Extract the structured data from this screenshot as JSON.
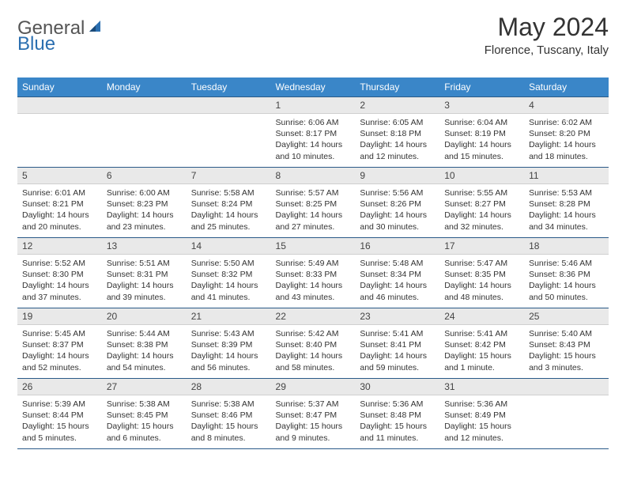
{
  "logo": {
    "part1": "General",
    "part2": "Blue"
  },
  "title": "May 2024",
  "location": "Florence, Tuscany, Italy",
  "colors": {
    "header_bg": "#3a86c8",
    "header_text": "#ffffff",
    "daynum_bg": "#e9e9e9",
    "border": "#2a5a88",
    "logo_accent": "#2b6fb0"
  },
  "weekdays": [
    "Sunday",
    "Monday",
    "Tuesday",
    "Wednesday",
    "Thursday",
    "Friday",
    "Saturday"
  ],
  "weeks": [
    [
      null,
      null,
      null,
      {
        "d": "1",
        "sr": "6:06 AM",
        "ss": "8:17 PM",
        "dl": "14 hours and 10 minutes."
      },
      {
        "d": "2",
        "sr": "6:05 AM",
        "ss": "8:18 PM",
        "dl": "14 hours and 12 minutes."
      },
      {
        "d": "3",
        "sr": "6:04 AM",
        "ss": "8:19 PM",
        "dl": "14 hours and 15 minutes."
      },
      {
        "d": "4",
        "sr": "6:02 AM",
        "ss": "8:20 PM",
        "dl": "14 hours and 18 minutes."
      }
    ],
    [
      {
        "d": "5",
        "sr": "6:01 AM",
        "ss": "8:21 PM",
        "dl": "14 hours and 20 minutes."
      },
      {
        "d": "6",
        "sr": "6:00 AM",
        "ss": "8:23 PM",
        "dl": "14 hours and 23 minutes."
      },
      {
        "d": "7",
        "sr": "5:58 AM",
        "ss": "8:24 PM",
        "dl": "14 hours and 25 minutes."
      },
      {
        "d": "8",
        "sr": "5:57 AM",
        "ss": "8:25 PM",
        "dl": "14 hours and 27 minutes."
      },
      {
        "d": "9",
        "sr": "5:56 AM",
        "ss": "8:26 PM",
        "dl": "14 hours and 30 minutes."
      },
      {
        "d": "10",
        "sr": "5:55 AM",
        "ss": "8:27 PM",
        "dl": "14 hours and 32 minutes."
      },
      {
        "d": "11",
        "sr": "5:53 AM",
        "ss": "8:28 PM",
        "dl": "14 hours and 34 minutes."
      }
    ],
    [
      {
        "d": "12",
        "sr": "5:52 AM",
        "ss": "8:30 PM",
        "dl": "14 hours and 37 minutes."
      },
      {
        "d": "13",
        "sr": "5:51 AM",
        "ss": "8:31 PM",
        "dl": "14 hours and 39 minutes."
      },
      {
        "d": "14",
        "sr": "5:50 AM",
        "ss": "8:32 PM",
        "dl": "14 hours and 41 minutes."
      },
      {
        "d": "15",
        "sr": "5:49 AM",
        "ss": "8:33 PM",
        "dl": "14 hours and 43 minutes."
      },
      {
        "d": "16",
        "sr": "5:48 AM",
        "ss": "8:34 PM",
        "dl": "14 hours and 46 minutes."
      },
      {
        "d": "17",
        "sr": "5:47 AM",
        "ss": "8:35 PM",
        "dl": "14 hours and 48 minutes."
      },
      {
        "d": "18",
        "sr": "5:46 AM",
        "ss": "8:36 PM",
        "dl": "14 hours and 50 minutes."
      }
    ],
    [
      {
        "d": "19",
        "sr": "5:45 AM",
        "ss": "8:37 PM",
        "dl": "14 hours and 52 minutes."
      },
      {
        "d": "20",
        "sr": "5:44 AM",
        "ss": "8:38 PM",
        "dl": "14 hours and 54 minutes."
      },
      {
        "d": "21",
        "sr": "5:43 AM",
        "ss": "8:39 PM",
        "dl": "14 hours and 56 minutes."
      },
      {
        "d": "22",
        "sr": "5:42 AM",
        "ss": "8:40 PM",
        "dl": "14 hours and 58 minutes."
      },
      {
        "d": "23",
        "sr": "5:41 AM",
        "ss": "8:41 PM",
        "dl": "14 hours and 59 minutes."
      },
      {
        "d": "24",
        "sr": "5:41 AM",
        "ss": "8:42 PM",
        "dl": "15 hours and 1 minute."
      },
      {
        "d": "25",
        "sr": "5:40 AM",
        "ss": "8:43 PM",
        "dl": "15 hours and 3 minutes."
      }
    ],
    [
      {
        "d": "26",
        "sr": "5:39 AM",
        "ss": "8:44 PM",
        "dl": "15 hours and 5 minutes."
      },
      {
        "d": "27",
        "sr": "5:38 AM",
        "ss": "8:45 PM",
        "dl": "15 hours and 6 minutes."
      },
      {
        "d": "28",
        "sr": "5:38 AM",
        "ss": "8:46 PM",
        "dl": "15 hours and 8 minutes."
      },
      {
        "d": "29",
        "sr": "5:37 AM",
        "ss": "8:47 PM",
        "dl": "15 hours and 9 minutes."
      },
      {
        "d": "30",
        "sr": "5:36 AM",
        "ss": "8:48 PM",
        "dl": "15 hours and 11 minutes."
      },
      {
        "d": "31",
        "sr": "5:36 AM",
        "ss": "8:49 PM",
        "dl": "15 hours and 12 minutes."
      },
      null
    ]
  ],
  "labels": {
    "sunrise": "Sunrise:",
    "sunset": "Sunset:",
    "daylight": "Daylight:"
  }
}
